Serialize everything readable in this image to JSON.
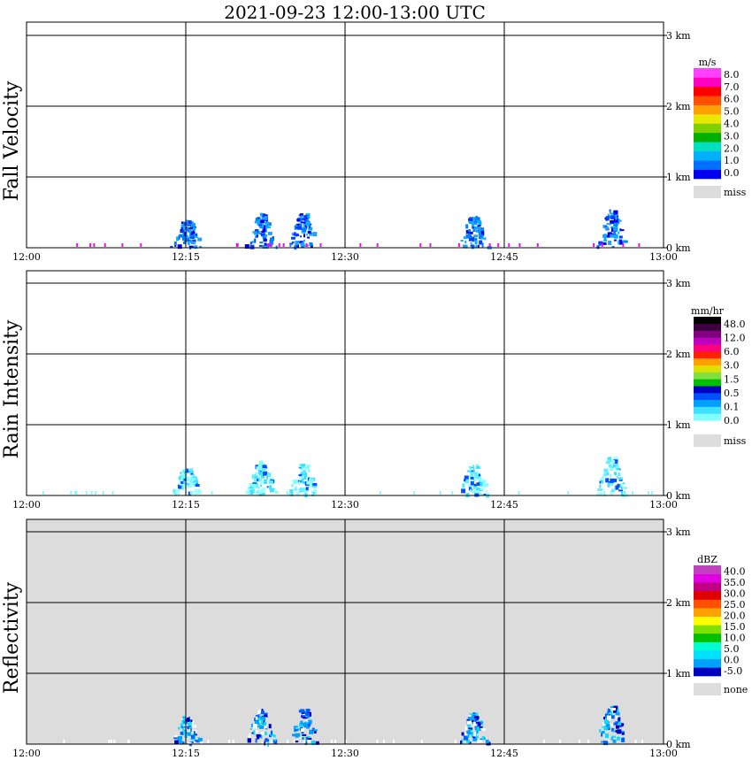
{
  "title": "2021-09-23   12:00-13:00 UTC",
  "chart_data": [
    {
      "type": "heatmap",
      "name": "Fall Velocity",
      "x_ticks": [
        "12:00",
        "12:15",
        "12:30",
        "12:45",
        "13:00"
      ],
      "y_ticks": [
        "0 km",
        "1 km",
        "2 km",
        "3 km"
      ],
      "ylim": [
        0,
        3
      ],
      "background": "#ffffff",
      "colorbar": {
        "unit": "m/s",
        "colors": [
          "#0000ee",
          "#0070ff",
          "#00b0ff",
          "#00e0c0",
          "#00b000",
          "#80d000",
          "#e8e800",
          "#ffa000",
          "#ff5000",
          "#ff0000",
          "#ff00c0",
          "#ff40ff"
        ],
        "labels": [
          "8.0",
          "7.0",
          "6.0",
          "5.0",
          "4.0",
          "3.0",
          "2.0",
          "1.0",
          "0.0"
        ],
        "miss_label": "miss",
        "miss_color": "#dddddd"
      },
      "echoes": [
        {
          "time": "12:15",
          "top_km": 0.4
        },
        {
          "time": "12:22",
          "top_km": 0.5
        },
        {
          "time": "12:26",
          "top_km": 0.5
        },
        {
          "time": "12:42",
          "top_km": 0.45
        },
        {
          "time": "12:55",
          "top_km": 0.55
        }
      ]
    },
    {
      "type": "heatmap",
      "name": "Rain Intensity",
      "x_ticks": [
        "12:00",
        "12:15",
        "12:30",
        "12:45",
        "13:00"
      ],
      "y_ticks": [
        "0 km",
        "1 km",
        "2 km",
        "3 km"
      ],
      "ylim": [
        0,
        3
      ],
      "background": "#ffffff",
      "colorbar": {
        "unit": "mm/hr",
        "colors": [
          "#ffffff",
          "#80ffff",
          "#40e0ff",
          "#00a0ff",
          "#0050ff",
          "#0000c0",
          "#00c000",
          "#80e040",
          "#e0e000",
          "#ffa000",
          "#ff2000",
          "#ff0080",
          "#c000c0",
          "#800080",
          "#400040",
          "#000000"
        ],
        "labels": [
          "48.0",
          "12.0",
          "6.0",
          "3.0",
          "1.5",
          "0.5",
          "0.1",
          "0.0"
        ],
        "miss_label": "miss",
        "miss_color": "#dddddd"
      },
      "echoes": [
        {
          "time": "12:15",
          "top_km": 0.4
        },
        {
          "time": "12:22",
          "top_km": 0.5
        },
        {
          "time": "12:26",
          "top_km": 0.45
        },
        {
          "time": "12:42",
          "top_km": 0.45
        },
        {
          "time": "12:55",
          "top_km": 0.55
        }
      ]
    },
    {
      "type": "heatmap",
      "name": "Reflectivity",
      "x_ticks": [
        "12:00",
        "12:15",
        "12:30",
        "12:45",
        "13:00"
      ],
      "y_ticks": [
        "0 km",
        "1 km",
        "2 km",
        "3 km"
      ],
      "ylim": [
        0,
        3
      ],
      "background": "#dcdcdc",
      "colorbar": {
        "unit": "dBZ",
        "colors": [
          "#0000c0",
          "#00a0ff",
          "#00e0ff",
          "#00ffd0",
          "#00c000",
          "#80e000",
          "#ffff00",
          "#ffa000",
          "#ff5000",
          "#e00000",
          "#c00080",
          "#e000e0",
          "#c040c0"
        ],
        "labels": [
          "40.0",
          "35.0",
          "30.0",
          "25.0",
          "20.0",
          "15.0",
          "10.0",
          "5.0",
          "0.0",
          "-5.0"
        ],
        "miss_label": "none",
        "miss_color": "#dddddd"
      },
      "echoes": [
        {
          "time": "12:15",
          "top_km": 0.4
        },
        {
          "time": "12:22",
          "top_km": 0.5
        },
        {
          "time": "12:26",
          "top_km": 0.5
        },
        {
          "time": "12:42",
          "top_km": 0.45
        },
        {
          "time": "12:55",
          "top_km": 0.55
        }
      ]
    }
  ]
}
